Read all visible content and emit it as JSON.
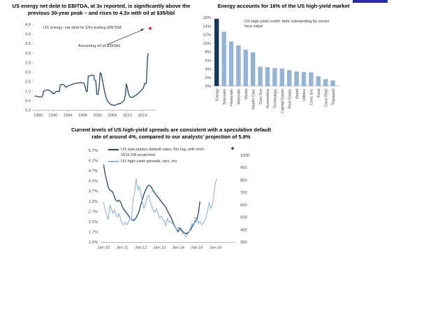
{
  "page": {
    "background": "#FFFFFF",
    "top_accent_bar_color": "#2A2FA8"
  },
  "colors": {
    "navy_line": "#24466E",
    "dark_navy_bar": "#17375E",
    "light_blue": "#95B3D7",
    "light_blue_line": "#8EB4DC",
    "red_marker": "#FF0000",
    "axis_gray": "#A6A6A6",
    "tick_text": "#3F3F3F"
  },
  "chart_data": [
    {
      "id": "energy-net-debt-ebitda",
      "type": "line",
      "title": "US energy net debt to EBITDA, at 3x reported, is significantly above the previous 30-year peak – and rises to 4.3x with oil at $35/bbl",
      "series_label": "US energy: net debt to 12m trailing EBITDA",
      "annotation": "Assuming oil at $35/bbl",
      "line_color": "#24466E",
      "xlim": [
        1984.8,
        2017.6
      ],
      "ylim": [
        0,
        4.5
      ],
      "x_ticks": [
        "1986",
        "1990",
        "1994",
        "1998",
        "2002",
        "2006",
        "2010",
        "2014"
      ],
      "x_tick_years": [
        1986,
        1990,
        1994,
        1998,
        2002,
        2006,
        2010,
        2014
      ],
      "y_ticks": [
        "4.5",
        "4.0",
        "3.5",
        "3.0",
        "2.5",
        "2.0",
        "1.5",
        "1.0",
        "0.5",
        "0.0"
      ],
      "projection_marker": {
        "year": 2016.1,
        "value": 4.3,
        "color": "#FF0000"
      },
      "points": [
        [
          1985.0,
          0.75
        ],
        [
          1985.6,
          0.73
        ],
        [
          1986.2,
          0.7
        ],
        [
          1986.8,
          0.68
        ],
        [
          1987.2,
          0.73
        ],
        [
          1987.5,
          1.0
        ],
        [
          1988.2,
          1.05
        ],
        [
          1988.8,
          1.07
        ],
        [
          1989.2,
          1.03
        ],
        [
          1989.6,
          0.95
        ],
        [
          1990.0,
          0.86
        ],
        [
          1990.5,
          0.9
        ],
        [
          1990.9,
          0.98
        ],
        [
          1991.4,
          1.0
        ],
        [
          1991.7,
          0.97
        ],
        [
          1992.0,
          1.34
        ],
        [
          1992.6,
          1.36
        ],
        [
          1993.0,
          1.32
        ],
        [
          1993.4,
          1.21
        ],
        [
          1993.9,
          1.24
        ],
        [
          1994.4,
          1.3
        ],
        [
          1995.0,
          1.34
        ],
        [
          1995.6,
          1.39
        ],
        [
          1996.2,
          1.41
        ],
        [
          1996.8,
          1.43
        ],
        [
          1997.4,
          1.45
        ],
        [
          1997.9,
          1.43
        ],
        [
          1998.3,
          1.42
        ],
        [
          1998.6,
          1.28
        ],
        [
          1998.9,
          1.02
        ],
        [
          1999.2,
          0.97
        ],
        [
          1999.5,
          1.78
        ],
        [
          2000.1,
          1.82
        ],
        [
          2000.7,
          1.84
        ],
        [
          2001.0,
          1.8
        ],
        [
          2001.2,
          1.57
        ],
        [
          2001.5,
          1.55
        ],
        [
          2001.8,
          0.84
        ],
        [
          2002.1,
          0.82
        ],
        [
          2002.4,
          1.2
        ],
        [
          2002.7,
          1.97
        ],
        [
          2003.0,
          1.9
        ],
        [
          2003.3,
          1.55
        ],
        [
          2003.6,
          1.25
        ],
        [
          2003.9,
          0.95
        ],
        [
          2004.2,
          0.72
        ],
        [
          2004.5,
          0.55
        ],
        [
          2004.8,
          0.45
        ],
        [
          2005.1,
          0.38
        ],
        [
          2005.5,
          0.3
        ],
        [
          2006.0,
          0.27
        ],
        [
          2006.5,
          0.25
        ],
        [
          2007.0,
          0.28
        ],
        [
          2007.5,
          0.33
        ],
        [
          2008.0,
          0.34
        ],
        [
          2008.4,
          0.38
        ],
        [
          2008.8,
          0.45
        ],
        [
          2009.1,
          0.52
        ],
        [
          2009.4,
          0.75
        ],
        [
          2009.7,
          1.38
        ],
        [
          2010.0,
          1.15
        ],
        [
          2010.3,
          0.85
        ],
        [
          2010.6,
          0.72
        ],
        [
          2011.0,
          0.66
        ],
        [
          2011.4,
          0.68
        ],
        [
          2011.8,
          0.73
        ],
        [
          2012.2,
          0.78
        ],
        [
          2012.6,
          0.83
        ],
        [
          2013.0,
          0.9
        ],
        [
          2013.4,
          0.98
        ],
        [
          2013.8,
          1.06
        ],
        [
          2014.1,
          1.12
        ],
        [
          2014.4,
          1.22
        ],
        [
          2014.6,
          1.4
        ],
        [
          2014.9,
          1.38
        ],
        [
          2015.1,
          1.45
        ],
        [
          2015.2,
          2.0
        ],
        [
          2015.35,
          2.6
        ],
        [
          2015.5,
          2.95
        ],
        [
          2015.6,
          3.0
        ]
      ]
    },
    {
      "id": "hy-sector-breakdown",
      "type": "bar",
      "title": "Energy accounts for 16% of the US high-yield market",
      "legend": "US high-yield credit: debt outstanding by sector, face value",
      "categories": [
        "Energy",
        "Telecoms",
        "Financials",
        "Materials",
        "Media",
        "Health Care",
        "Com Svs",
        "Automotive",
        "Technology",
        "Capital Goods",
        "Real Estate",
        "Retail",
        "Utilities",
        "Cons Svs",
        "Food",
        "Cons Prod",
        "Transport"
      ],
      "values": [
        15.7,
        12.7,
        10.4,
        9.5,
        8.5,
        7.9,
        4.5,
        4.4,
        4.2,
        4.1,
        3.7,
        3.4,
        3.25,
        3.2,
        2.3,
        1.6,
        1.3
      ],
      "highlight_index": 0,
      "bar_color": "#95B3D7",
      "highlight_color": "#17375E",
      "ylim": [
        0,
        16
      ],
      "y_ticks": [
        "16%",
        "14%",
        "12%",
        "10%",
        "8%",
        "6%",
        "4%",
        "2%",
        "0%"
      ]
    },
    {
      "id": "defaults-vs-spreads",
      "type": "line-dual",
      "title": "Current levels of US high-yield spreads are consistent with a speculative default rate of around 4%, compared to our analysts’ projection of 5.8%",
      "legend": [
        {
          "label": "US speculative default rates, 8m lag, with end-2016 DB projection",
          "color": "#24466E"
        },
        {
          "label": "US high-yield spreads, bps, rhs",
          "color": "#8EB4DC"
        }
      ],
      "left_y_ticks": [
        "5.7%",
        "5.2%",
        "4.7%",
        "4.2%",
        "3.7%",
        "3.2%",
        "2.7%",
        "2.2%",
        "1.7%",
        "1.2%"
      ],
      "right_y_ticks": [
        "1000",
        "900",
        "800",
        "700",
        "600",
        "500",
        "400",
        "300"
      ],
      "left_ylim": [
        1.2,
        5.7
      ],
      "right_ylim": [
        300,
        1000
      ],
      "x_ticks": [
        "Jan-10",
        "Jan-11",
        "Jan-12",
        "Jan-13",
        "Jan-14",
        "Jan-15",
        "Jan-16"
      ],
      "projection_marker": {
        "label": "end-2016 DB projection",
        "months_from_start": 83,
        "value_pct": 5.8,
        "color": "#24466E"
      },
      "series": [
        {
          "name": "US speculative default rates (%), 8m lag",
          "axis": "left",
          "color": "#24466E",
          "start": "Jan-10",
          "interval_months": 1,
          "values": [
            5.0,
            4.55,
            4.2,
            3.9,
            3.75,
            3.7,
            3.65,
            3.4,
            3.25,
            3.2,
            3.25,
            3.15,
            2.95,
            2.8,
            2.7,
            2.6,
            2.5,
            2.4,
            2.3,
            2.25,
            2.3,
            2.4,
            2.55,
            2.75,
            3.05,
            3.3,
            3.55,
            3.75,
            3.9,
            4.0,
            3.95,
            3.85,
            3.7,
            3.6,
            3.5,
            3.4,
            3.3,
            3.2,
            3.1,
            3.0,
            2.9,
            2.75,
            2.6,
            2.45,
            2.3,
            2.1,
            1.95,
            1.8,
            1.7,
            1.9,
            1.8,
            1.7,
            1.65,
            1.6,
            1.65,
            1.7,
            1.8,
            1.95,
            2.1,
            2.2,
            2.3,
            2.6,
            3.2
          ]
        },
        {
          "name": "US high-yield spreads (bps)",
          "axis": "right",
          "color": "#8EB4DC",
          "start": "Jan-10",
          "interval_months": 1,
          "values": [
            620,
            560,
            520,
            480,
            600,
            570,
            530,
            560,
            520,
            500,
            530,
            480,
            450,
            440,
            460,
            440,
            460,
            500,
            480,
            640,
            700,
            810,
            720,
            750,
            690,
            620,
            570,
            610,
            660,
            680,
            630,
            590,
            550,
            540,
            570,
            530,
            490,
            510,
            480,
            470,
            430,
            490,
            460,
            470,
            450,
            440,
            420,
            400,
            420,
            400,
            390,
            370,
            360,
            340,
            360,
            380,
            420,
            450,
            430,
            500,
            480,
            450,
            470,
            440,
            450,
            470,
            500,
            560,
            620,
            570,
            600,
            690,
            780,
            810
          ]
        }
      ]
    }
  ]
}
